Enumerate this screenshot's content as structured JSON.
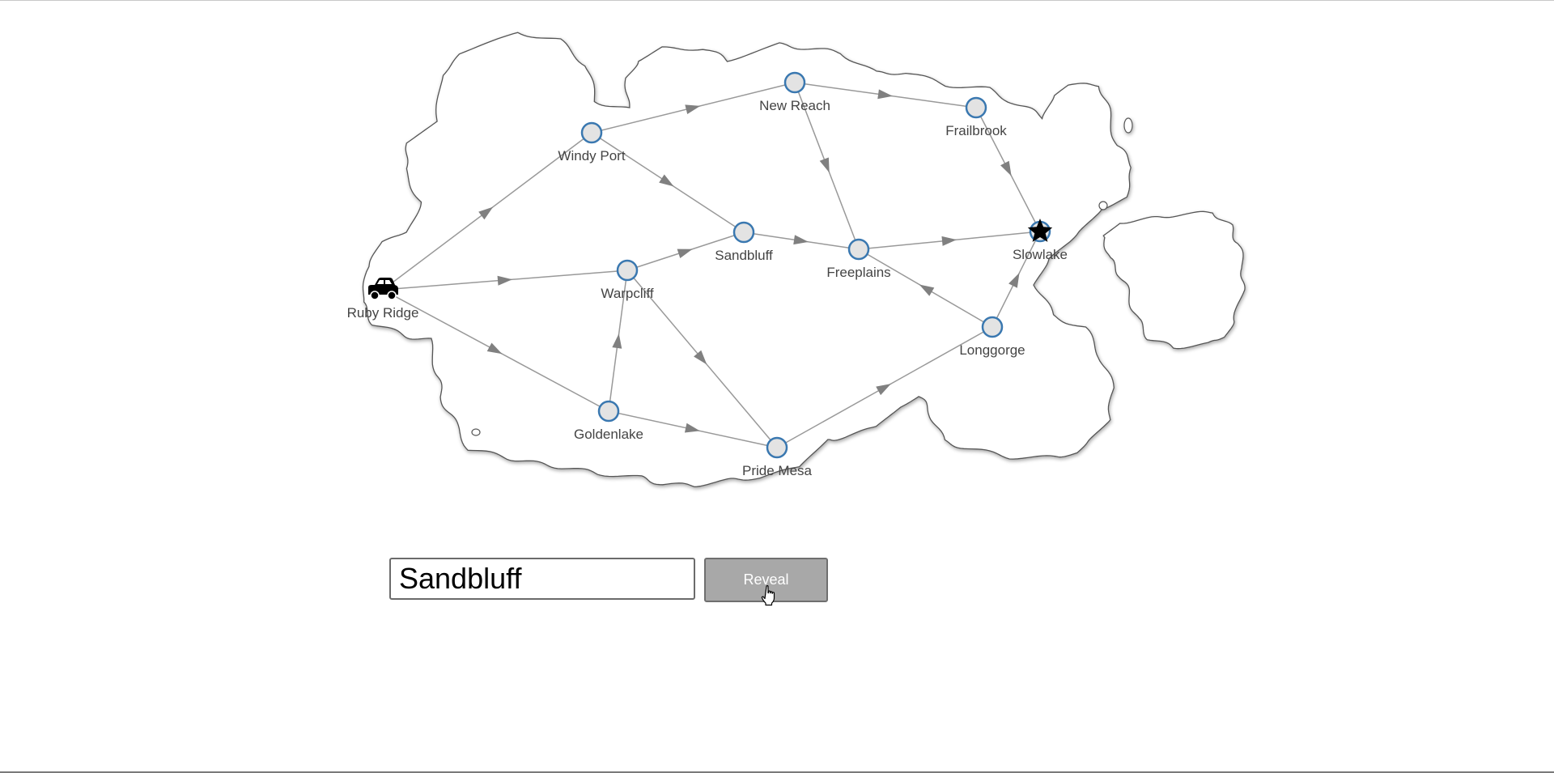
{
  "map": {
    "cities": [
      {
        "id": "ruby-ridge",
        "name": "Ruby Ridge",
        "marker": "car-icon"
      },
      {
        "id": "windy-port",
        "name": "Windy Port",
        "marker": "node"
      },
      {
        "id": "new-reach",
        "name": "New Reach",
        "marker": "node"
      },
      {
        "id": "frailbrook",
        "name": "Frailbrook",
        "marker": "node"
      },
      {
        "id": "sandbluff",
        "name": "Sandbluff",
        "marker": "node"
      },
      {
        "id": "freeplains",
        "name": "Freeplains",
        "marker": "node"
      },
      {
        "id": "slowlake",
        "name": "Slowlake",
        "marker": "star-icon"
      },
      {
        "id": "warpcliff",
        "name": "Warpcliff",
        "marker": "node"
      },
      {
        "id": "longgorge",
        "name": "Longgorge",
        "marker": "node"
      },
      {
        "id": "goldenlake",
        "name": "Goldenlake",
        "marker": "node"
      },
      {
        "id": "pride-mesa",
        "name": "Pride Mesa",
        "marker": "node"
      }
    ],
    "routes": [
      [
        "ruby-ridge",
        "windy-port"
      ],
      [
        "ruby-ridge",
        "warpcliff"
      ],
      [
        "ruby-ridge",
        "goldenlake"
      ],
      [
        "windy-port",
        "new-reach"
      ],
      [
        "windy-port",
        "sandbluff"
      ],
      [
        "new-reach",
        "frailbrook"
      ],
      [
        "new-reach",
        "freeplains"
      ],
      [
        "frailbrook",
        "slowlake"
      ],
      [
        "sandbluff",
        "freeplains"
      ],
      [
        "warpcliff",
        "sandbluff"
      ],
      [
        "warpcliff",
        "pride-mesa"
      ],
      [
        "goldenlake",
        "warpcliff"
      ],
      [
        "goldenlake",
        "pride-mesa"
      ],
      [
        "pride-mesa",
        "longgorge"
      ],
      [
        "longgorge",
        "freeplains"
      ],
      [
        "longgorge",
        "slowlake"
      ],
      [
        "freeplains",
        "slowlake"
      ]
    ],
    "colors": {
      "node_fill": "#e3e3e3",
      "node_stroke": "#3a78b0",
      "edge": "#999999",
      "land_stroke": "#555555",
      "label": "#444444"
    }
  },
  "controls": {
    "answer_value": "Sandbluff",
    "reveal_label": "Reveal"
  }
}
